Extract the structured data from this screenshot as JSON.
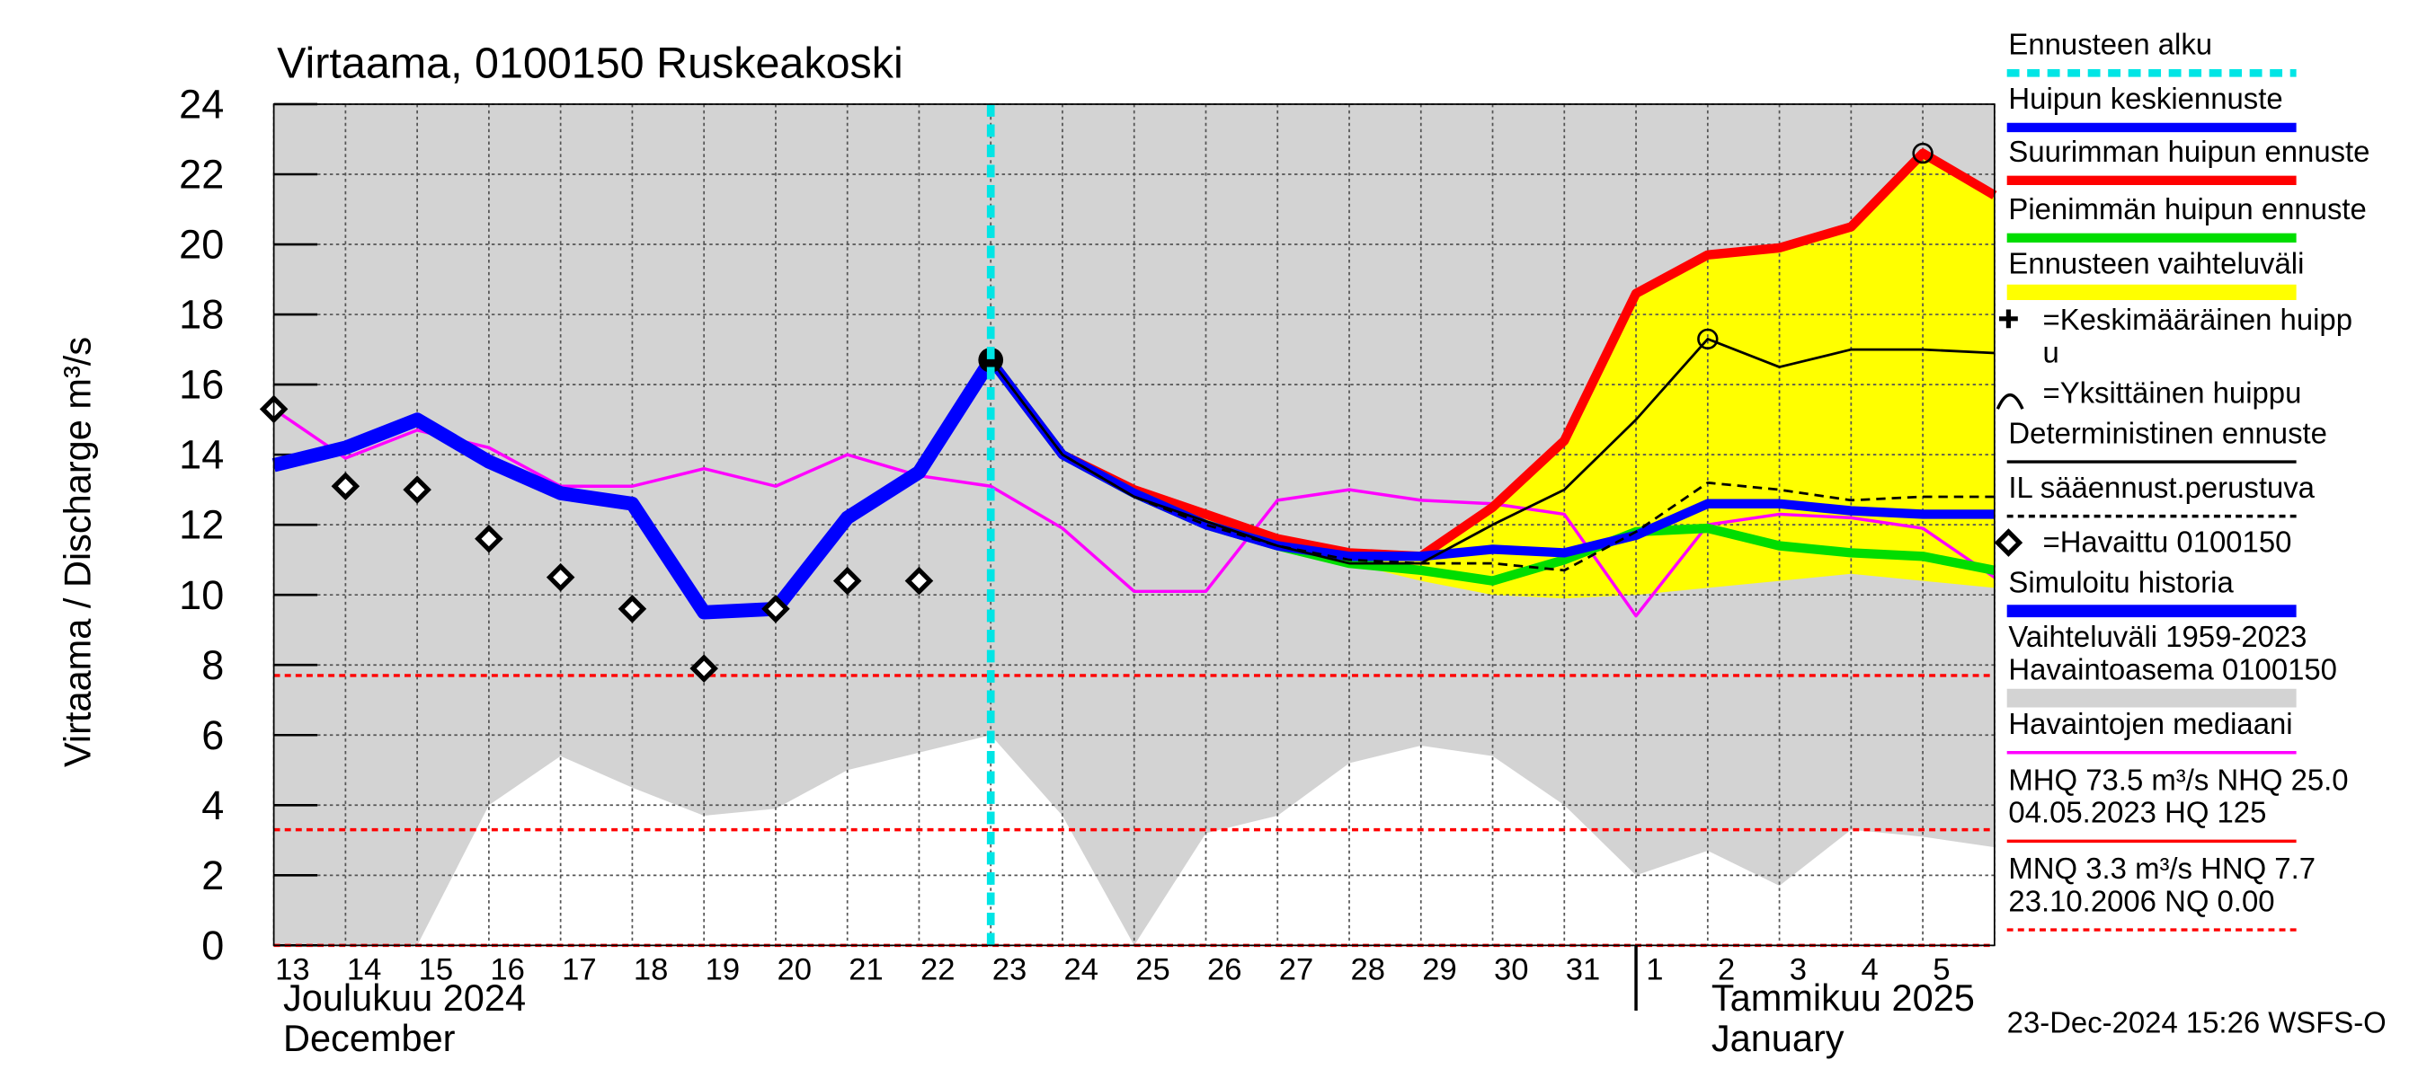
{
  "chart_data": {
    "type": "line",
    "title": "Virtaama, 0100150 Ruskeakoski",
    "y_label": "Virtaama / Discharge    m³/s",
    "categories": [
      "13",
      "14",
      "15",
      "16",
      "17",
      "18",
      "19",
      "20",
      "21",
      "22",
      "23",
      "24",
      "25",
      "26",
      "27",
      "28",
      "29",
      "30",
      "31",
      "1",
      "2",
      "3",
      "4",
      "5",
      null
    ],
    "month_labels": [
      [
        "Joulukuu  2024",
        "December"
      ],
      [
        "Tammikuu  2025",
        "January"
      ]
    ],
    "timestamp": "23-Dec-2024 15:26 WSFS-O",
    "ylim": [
      0,
      24
    ],
    "yticks": [
      0,
      2,
      4,
      6,
      8,
      10,
      12,
      14,
      16,
      18,
      20,
      22,
      24
    ],
    "grid": true,
    "forecast_start": 10,
    "reference_lines": [
      7.7,
      3.3,
      0.0
    ],
    "history_range": {
      "color": "#d3d3d3",
      "low": [
        0,
        0,
        0,
        4.0,
        5.4,
        4.5,
        3.7,
        3.9,
        5.0,
        5.5,
        6.0,
        3.7,
        0,
        3.2,
        3.7,
        5.2,
        5.7,
        5.4,
        4.0,
        2.0,
        2.7,
        1.7,
        3.3,
        3.1,
        2.8
      ]
    },
    "band": {
      "color": "#ffff00",
      "low": [
        null,
        null,
        null,
        null,
        null,
        null,
        null,
        null,
        null,
        null,
        16.7,
        14.0,
        12.9,
        12.0,
        11.4,
        10.9,
        10.4,
        10.0,
        9.9,
        10.0,
        10.2,
        10.4,
        10.6,
        10.4,
        10.2
      ],
      "high": [
        null,
        null,
        null,
        null,
        null,
        null,
        null,
        null,
        null,
        null,
        16.7,
        14.0,
        13.0,
        12.3,
        11.6,
        11.2,
        11.1,
        12.5,
        14.4,
        18.6,
        19.7,
        19.9,
        20.5,
        22.6,
        21.4
      ]
    },
    "series": [
      {
        "color": "#ff00ff",
        "width": 2,
        "values": [
          15.3,
          13.9,
          14.7,
          14.2,
          13.1,
          13.1,
          13.6,
          13.1,
          14.0,
          13.4,
          13.1,
          11.9,
          10.1,
          10.1,
          12.7,
          13.0,
          12.7,
          12.6,
          12.3,
          9.4,
          12.0,
          12.3,
          12.2,
          11.9,
          10.5
        ]
      },
      {
        "color": "#0000ff",
        "width": 9,
        "values": [
          13.7,
          14.2,
          15.0,
          13.8,
          12.9,
          12.6,
          9.5,
          9.6,
          12.2,
          13.5,
          16.7,
          null,
          null,
          null,
          null,
          null,
          null,
          null,
          null,
          null,
          null,
          null,
          null,
          null,
          null
        ]
      },
      {
        "color": "#ff0000",
        "width": 6,
        "values": [
          null,
          null,
          null,
          null,
          null,
          null,
          null,
          null,
          null,
          null,
          16.7,
          14.0,
          13.0,
          12.3,
          11.6,
          11.2,
          11.1,
          12.5,
          14.4,
          18.6,
          19.7,
          19.9,
          20.5,
          22.6,
          21.4
        ]
      },
      {
        "color": "#00dd00",
        "width": 6,
        "values": [
          null,
          null,
          null,
          null,
          null,
          null,
          null,
          null,
          null,
          null,
          16.7,
          14.0,
          12.9,
          12.0,
          11.4,
          10.9,
          10.7,
          10.4,
          11.0,
          11.8,
          11.9,
          11.4,
          11.2,
          11.1,
          10.7
        ]
      },
      {
        "color": "#0000ff",
        "width": 6,
        "values": [
          null,
          null,
          null,
          null,
          null,
          null,
          null,
          null,
          null,
          null,
          16.7,
          14.0,
          12.9,
          12.0,
          11.4,
          11.1,
          11.1,
          11.3,
          11.2,
          11.7,
          12.6,
          12.6,
          12.4,
          12.3,
          12.3
        ]
      },
      {
        "color": "#000000",
        "width": 1.6,
        "dash": "6,4",
        "values": [
          null,
          null,
          null,
          null,
          null,
          null,
          null,
          null,
          null,
          null,
          16.7,
          14.0,
          12.8,
          12.0,
          11.4,
          11.0,
          10.9,
          10.9,
          10.7,
          11.8,
          13.2,
          13.0,
          12.7,
          12.8,
          12.8
        ]
      },
      {
        "color": "#000000",
        "width": 1.6,
        "values": [
          null,
          null,
          null,
          null,
          null,
          null,
          null,
          null,
          null,
          null,
          16.7,
          14.0,
          12.8,
          12.1,
          11.4,
          10.9,
          10.9,
          12.0,
          13.0,
          15.0,
          17.3,
          16.5,
          17.0,
          17.0,
          16.9
        ]
      }
    ],
    "observed": [
      15.3,
      13.1,
      13.0,
      11.6,
      10.5,
      9.6,
      7.9,
      9.6,
      10.4,
      10.4
    ],
    "legend": [
      {
        "text": [
          "Ennusteen alku"
        ],
        "color": "#00e5e5",
        "dash": "8,5",
        "width": 5
      },
      {
        "text": [
          "Huipun keskiennuste"
        ],
        "color": "#0000ff",
        "width": 6
      },
      {
        "text": [
          "Suurimman huipun ennuste"
        ],
        "color": "#ff0000",
        "width": 6
      },
      {
        "text": [
          "Pienimmän huipun ennuste"
        ],
        "color": "#00dd00",
        "width": 6
      },
      {
        "text": [
          "Ennusteen vaihteluväli"
        ],
        "color": "#ffff00",
        "width": 10
      },
      {
        "text": [
          "=Keskimääräinen huipp",
          "u"
        ],
        "icon": "cross"
      },
      {
        "text": [
          "=Yksittäinen huippu"
        ],
        "icon": "arc"
      },
      {
        "text": [
          "Deterministinen ennuste"
        ],
        "color": "#000000",
        "width": 2
      },
      {
        "text": [
          "IL sääennust.perustuva"
        ],
        "color": "#000000",
        "dash": "4,3",
        "width": 2
      },
      {
        "text": [
          "=Havaittu 0100150"
        ],
        "icon": "diamond"
      },
      {
        "text": [
          "Simuloitu historia"
        ],
        "color": "#0000ff",
        "width": 8
      },
      {
        "text": [
          "Vaihteluväli 1959-2023",
          " Havaintoasema 0100150"
        ],
        "color": "#d3d3d3",
        "width": 12
      },
      {
        "text": [
          "Havaintojen mediaani"
        ],
        "color": "#ff00ff",
        "width": 2
      },
      {
        "text": [
          "MHQ 73.5 m³/s NHQ 25.0",
          "04.05.2023 HQ  125"
        ],
        "color": "#ff0000",
        "width": 2
      },
      {
        "text": [
          "MNQ  3.3 m³/s HNQ  7.7",
          "23.10.2006 NQ 0.00"
        ],
        "color": "#ff0000",
        "dash": "4,3",
        "width": 2
      }
    ]
  }
}
